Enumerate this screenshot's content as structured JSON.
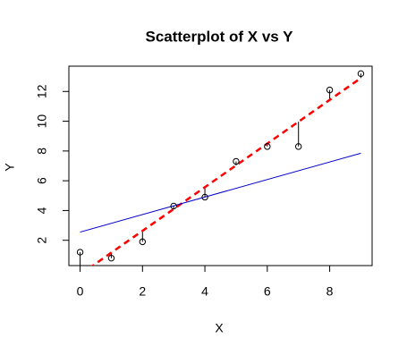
{
  "chart_data": {
    "type": "scatter",
    "title": "Scatterplot of X vs Y",
    "x_label": "X",
    "y_label": "Y",
    "x": [
      0,
      1,
      2,
      3,
      4,
      5,
      6,
      7,
      8,
      9
    ],
    "values": [
      1.2,
      0.8,
      1.9,
      4.3,
      4.9,
      7.3,
      8.3,
      8.3,
      12.1,
      13.2
    ],
    "color": "#000000",
    "lines": [
      {
        "x": [
          0,
          9
        ],
        "values": [
          -0.3,
          12.9
        ],
        "color": "#ff0000",
        "dashed": true
      },
      {
        "x": [
          0,
          9
        ],
        "values": [
          2.55,
          7.85
        ],
        "color": "#0000cd",
        "dashed": false
      }
    ],
    "xlim": [
      -0.36,
      9.36
    ],
    "ylim": [
      0.3,
      13.7
    ],
    "xticks": [
      0,
      2,
      4,
      6,
      8
    ],
    "yticks": [
      2,
      4,
      6,
      8,
      10,
      12
    ]
  }
}
